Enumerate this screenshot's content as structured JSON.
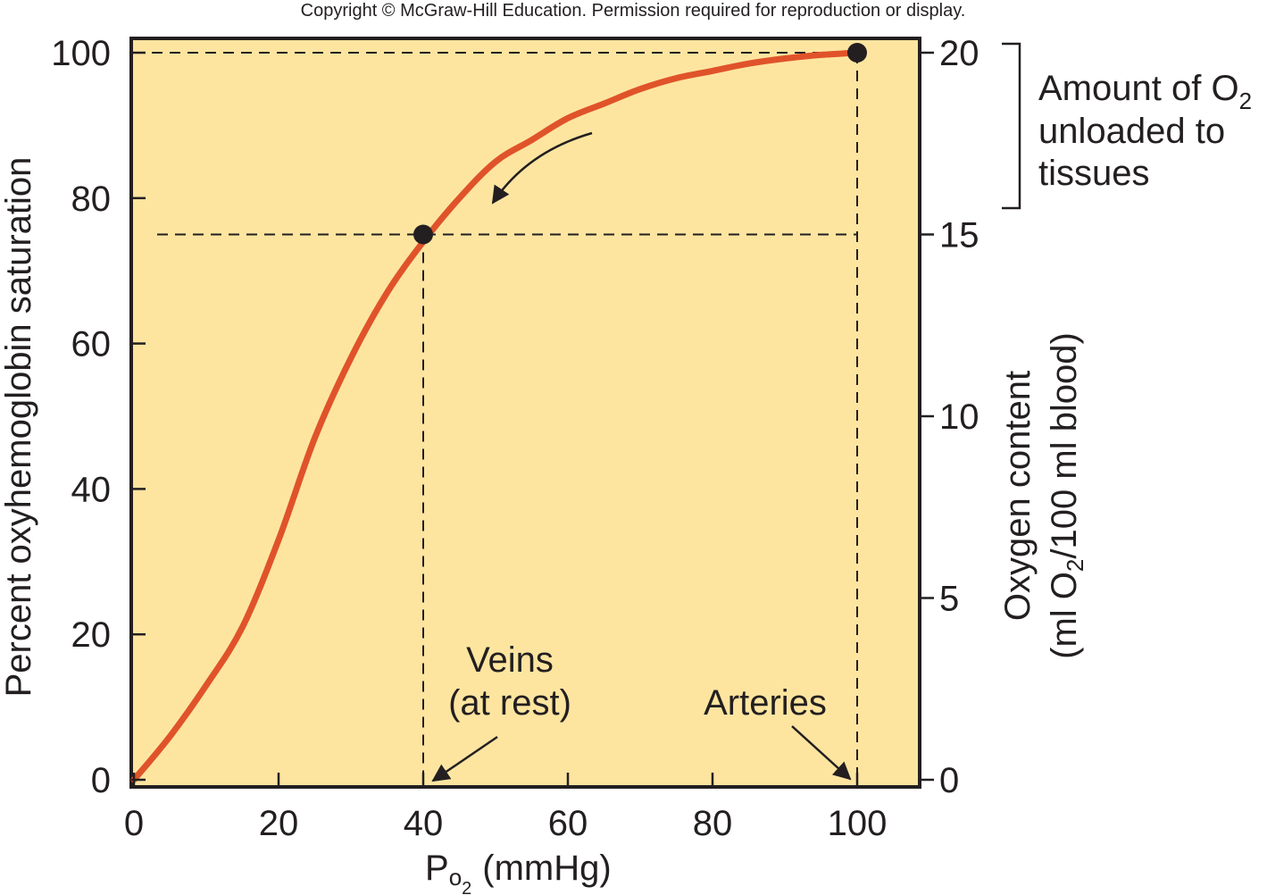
{
  "copyright": "Copyright © McGraw-Hill Education. Permission required for reproduction or display.",
  "colors": {
    "plot_background": "#fde5a0",
    "curve": "#e0532a",
    "ink": "#231f20"
  },
  "chart_data": {
    "type": "line",
    "xlabel": {
      "main": "P",
      "sub_o": "o",
      "sub_2": "2",
      "unit": "(mmHg)"
    },
    "ylabel": "Percent oxyhemoglobin saturation",
    "y2label": {
      "line1": "Oxygen content",
      "line2_pre": "(ml O",
      "line2_sub": "2",
      "line2_post": "/100 ml blood)"
    },
    "xlim": [
      0,
      100
    ],
    "ylim": [
      0,
      100
    ],
    "y2lim": [
      0,
      20
    ],
    "xticks": [
      "0",
      "20",
      "40",
      "60",
      "80",
      "100"
    ],
    "yticks": [
      "0",
      "20",
      "40",
      "60",
      "80",
      "100"
    ],
    "y2ticks": [
      "0",
      "5",
      "10",
      "15",
      "20"
    ],
    "grid": false,
    "series": [
      {
        "x": [
          0,
          5,
          10,
          15,
          20,
          25,
          30,
          35,
          40,
          45,
          50,
          55,
          60,
          65,
          70,
          75,
          80,
          85,
          90,
          95,
          100
        ],
        "y": [
          0,
          6,
          13,
          21,
          33,
          47,
          58,
          67,
          74,
          80,
          85,
          88,
          91,
          93,
          95,
          96.5,
          97.5,
          98.5,
          99.2,
          99.7,
          100
        ]
      }
    ],
    "points": [
      {
        "x": 40,
        "y": 75
      },
      {
        "x": 100,
        "y": 100
      }
    ],
    "reference_lines": [
      {
        "axis": "y",
        "value": 100
      },
      {
        "axis": "y",
        "value": 75
      },
      {
        "axis": "x",
        "value": 40
      },
      {
        "axis": "x",
        "value": 100
      }
    ],
    "annotations": {
      "veins_line1": "Veins",
      "veins_line2": "(at rest)",
      "arteries": "Arteries",
      "bracket_line1_pre": "Amount of O",
      "bracket_line1_sub": "2",
      "bracket_line2": "unloaded to",
      "bracket_line3": "tissues"
    }
  }
}
